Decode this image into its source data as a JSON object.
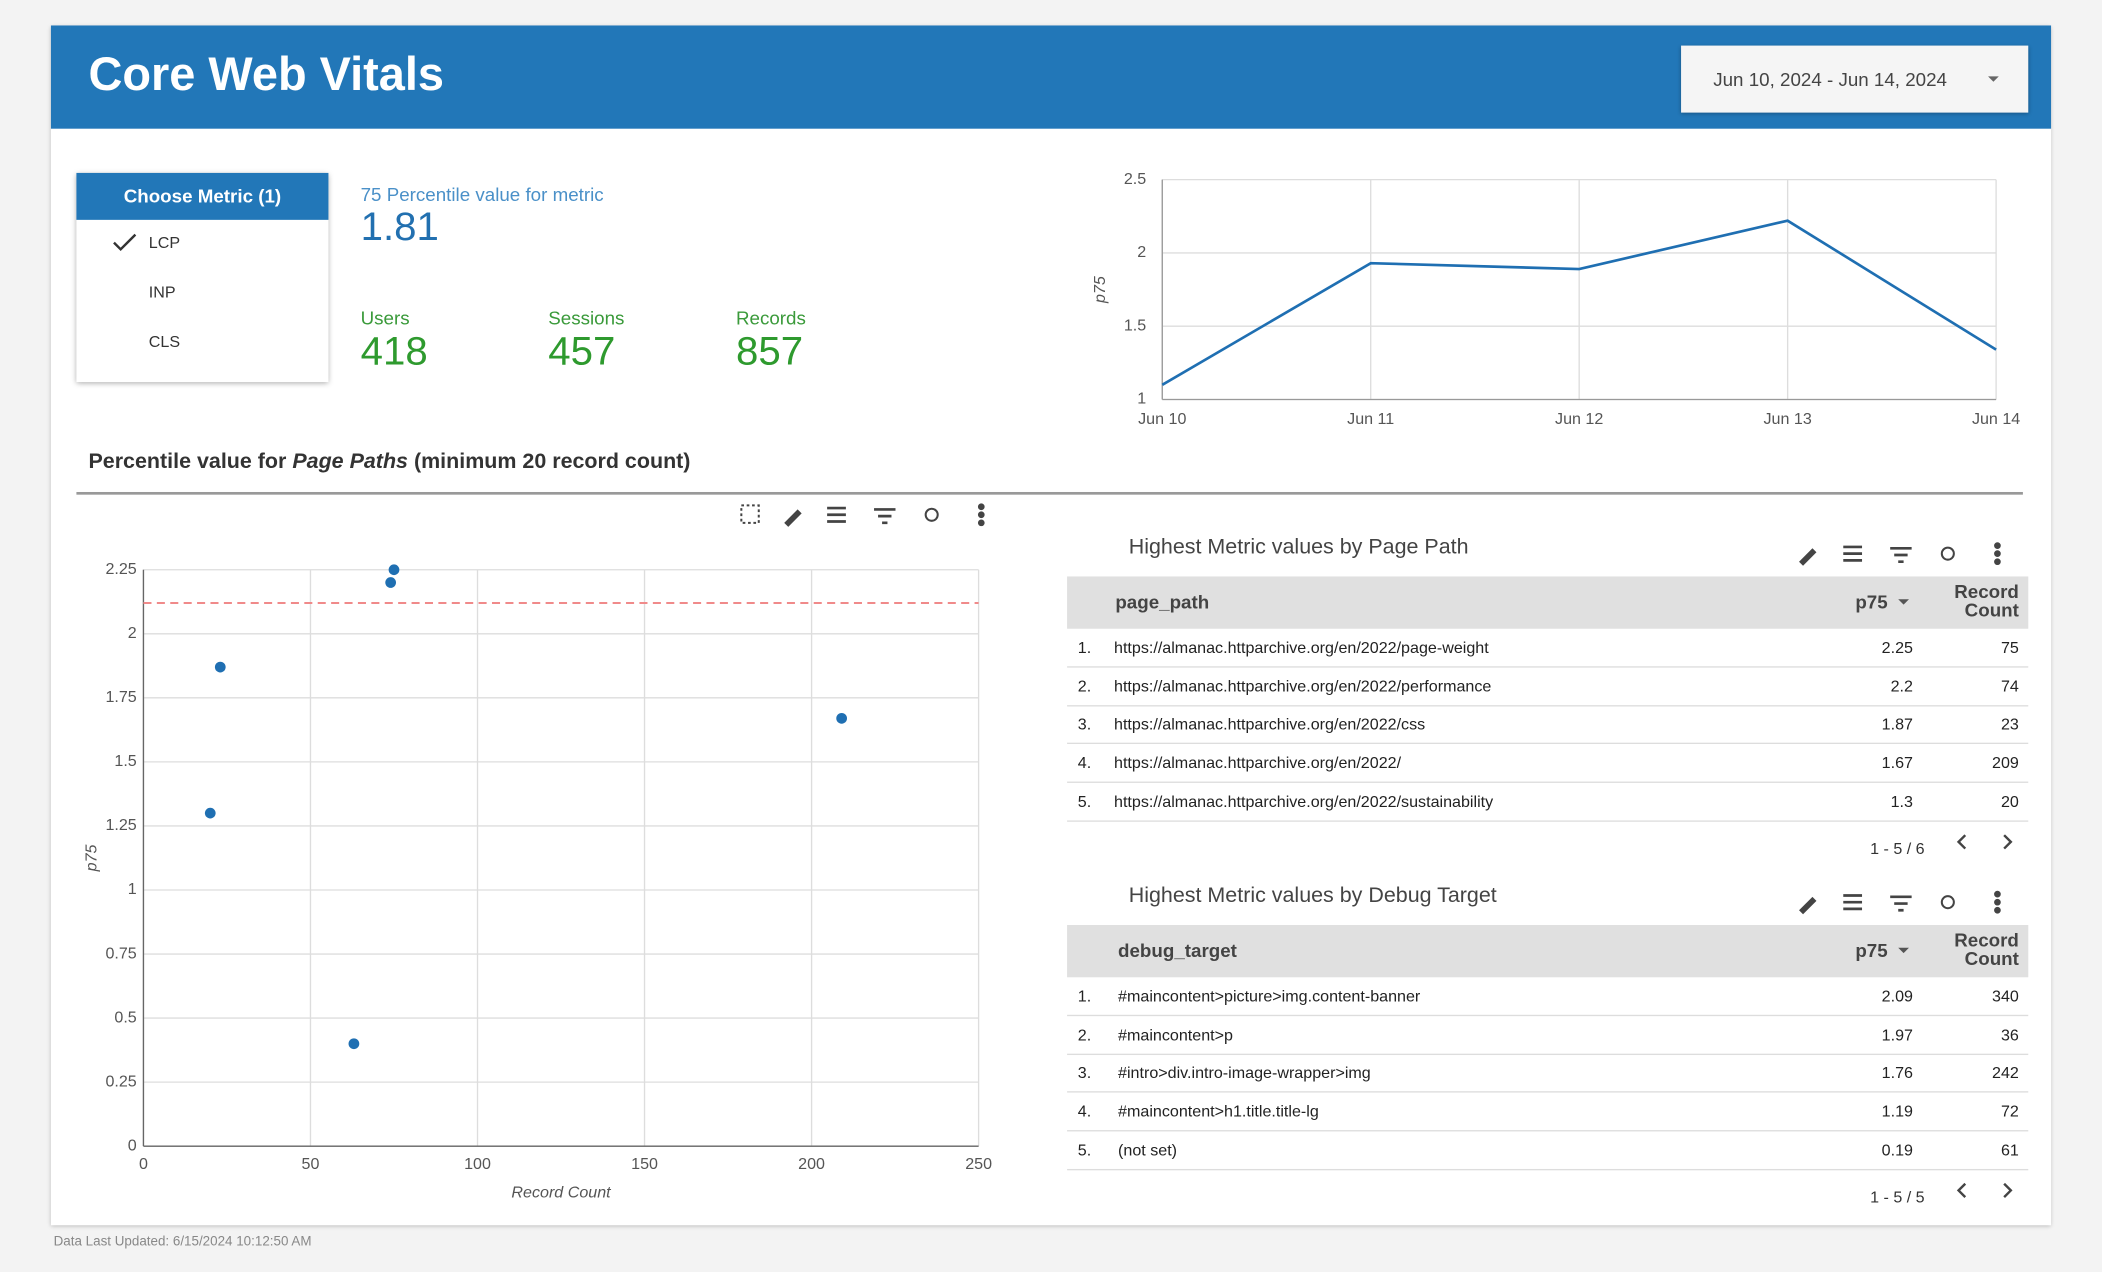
{
  "header": {
    "title": "Core Web Vitals",
    "date_range": "Jun 10, 2024 - Jun 14, 2024"
  },
  "metric_filter": {
    "title": "Choose Metric (1)",
    "options": [
      "LCP",
      "INP",
      "CLS"
    ],
    "selected": 0
  },
  "scorecards": {
    "percentile": {
      "label": "75 Percentile value for metric",
      "value": 1.81
    },
    "users": {
      "label": "Users",
      "value": 418
    },
    "sessions": {
      "label": "Sessions",
      "value": 457
    },
    "records": {
      "label": "Records",
      "value": 857
    }
  },
  "chart_data": [
    {
      "type": "line",
      "categories": [
        "Jun 10",
        "Jun 11",
        "Jun 12",
        "Jun 13",
        "Jun 14"
      ],
      "values": [
        1.1,
        1.93,
        1.89,
        2.22,
        1.34
      ],
      "color": "#1f6fb2",
      "ylabel": "p75",
      "ylim": [
        1,
        2.5
      ],
      "yticks": [
        1,
        1.5,
        2,
        2.5
      ],
      "grid": true
    },
    {
      "type": "scatter",
      "title_parts": [
        "Percentile value for",
        "Page Paths",
        "(minimum 20 record count)"
      ],
      "x": [
        75,
        74,
        23,
        209,
        20,
        63
      ],
      "values": [
        2.25,
        2.2,
        1.87,
        1.67,
        1.3,
        0.4
      ],
      "color": "#1f6fb2",
      "reference_line": 2.12,
      "reference_color": "#f08a8a",
      "xlabel": "Record Count",
      "ylabel": "p75",
      "xlim": [
        0,
        250
      ],
      "xticks": [
        0,
        50,
        100,
        150,
        200,
        250
      ],
      "ylim": [
        0,
        2.25
      ],
      "yticks": [
        0,
        0.25,
        0.5,
        0.75,
        1,
        1.25,
        1.5,
        1.75,
        2,
        2.25
      ],
      "grid": true
    }
  ],
  "tables": [
    {
      "title": "Highest Metric values by Page Path",
      "columns": [
        "page_path",
        "p75",
        "Record Count"
      ],
      "rows": [
        [
          "1.",
          "https://almanac.httparchive.org/en/2022/page-weight",
          2.25,
          75
        ],
        [
          "2.",
          "https://almanac.httparchive.org/en/2022/performance",
          2.2,
          74
        ],
        [
          "3.",
          "https://almanac.httparchive.org/en/2022/css",
          1.87,
          23
        ],
        [
          "4.",
          "https://almanac.httparchive.org/en/2022/",
          1.67,
          209
        ],
        [
          "5.",
          "https://almanac.httparchive.org/en/2022/sustainability",
          1.3,
          20
        ]
      ],
      "pagination": "1 - 5 / 6"
    },
    {
      "title": "Highest Metric values by Debug Target",
      "columns": [
        "debug_target",
        "p75",
        "Record Count"
      ],
      "rows": [
        [
          "1.",
          "#maincontent>picture>img.content-banner",
          2.09,
          340
        ],
        [
          "2.",
          "#maincontent>p",
          1.97,
          36
        ],
        [
          "3.",
          "#intro>div.intro-image-wrapper>img",
          1.76,
          242
        ],
        [
          "4.",
          "#maincontent>h1.title.title-lg",
          1.19,
          72
        ],
        [
          "5.",
          "(not set)",
          0.19,
          61
        ]
      ],
      "pagination": "1 - 5 / 5"
    }
  ],
  "footer": "Data Last Updated: 6/15/2024 10:12:50 AM"
}
